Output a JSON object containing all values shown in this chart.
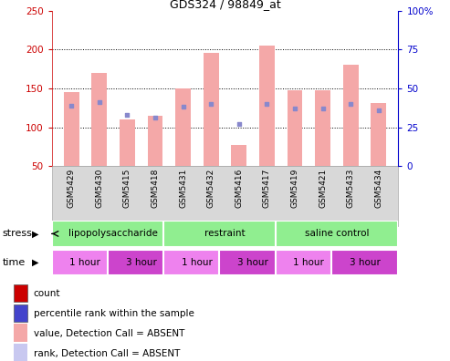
{
  "title": "GDS324 / 98849_at",
  "samples": [
    "GSM5429",
    "GSM5430",
    "GSM5415",
    "GSM5418",
    "GSM5431",
    "GSM5432",
    "GSM5416",
    "GSM5417",
    "GSM5419",
    "GSM5421",
    "GSM5433",
    "GSM5434"
  ],
  "bar_values": [
    145,
    170,
    110,
    115,
    150,
    196,
    77,
    205,
    148,
    148,
    180,
    131
  ],
  "percentile_values": [
    39,
    41,
    33,
    31,
    38,
    40,
    27,
    40,
    37,
    37,
    40,
    36
  ],
  "ylim_left": [
    50,
    250
  ],
  "ylim_right": [
    0,
    100
  ],
  "yticks_left": [
    50,
    100,
    150,
    200,
    250
  ],
  "yticks_right": [
    0,
    25,
    50,
    75,
    100
  ],
  "bar_color": "#f4a8a8",
  "dot_color": "#8888cc",
  "bar_width": 0.55,
  "stress_spans": [
    {
      "label": "lipopolysaccharide",
      "start": 0,
      "end": 4,
      "color": "#90ee90"
    },
    {
      "label": "restraint",
      "start": 4,
      "end": 8,
      "color": "#90ee90"
    },
    {
      "label": "saline control",
      "start": 8,
      "end": 12,
      "color": "#90ee90"
    }
  ],
  "time_spans": [
    {
      "label": "1 hour",
      "start": 0,
      "end": 2,
      "color": "#ee82ee"
    },
    {
      "label": "3 hour",
      "start": 2,
      "end": 4,
      "color": "#cc44cc"
    },
    {
      "label": "1 hour",
      "start": 4,
      "end": 6,
      "color": "#ee82ee"
    },
    {
      "label": "3 hour",
      "start": 6,
      "end": 8,
      "color": "#cc44cc"
    },
    {
      "label": "1 hour",
      "start": 8,
      "end": 10,
      "color": "#ee82ee"
    },
    {
      "label": "3 hour",
      "start": 10,
      "end": 12,
      "color": "#cc44cc"
    }
  ],
  "legend_items": [
    {
      "label": "count",
      "color": "#cc0000"
    },
    {
      "label": "percentile rank within the sample",
      "color": "#4444cc"
    },
    {
      "label": "value, Detection Call = ABSENT",
      "color": "#f4a8a8"
    },
    {
      "label": "rank, Detection Call = ABSENT",
      "color": "#c8c8f0"
    }
  ],
  "left_label_color": "#cc0000",
  "right_label_color": "#0000cc"
}
